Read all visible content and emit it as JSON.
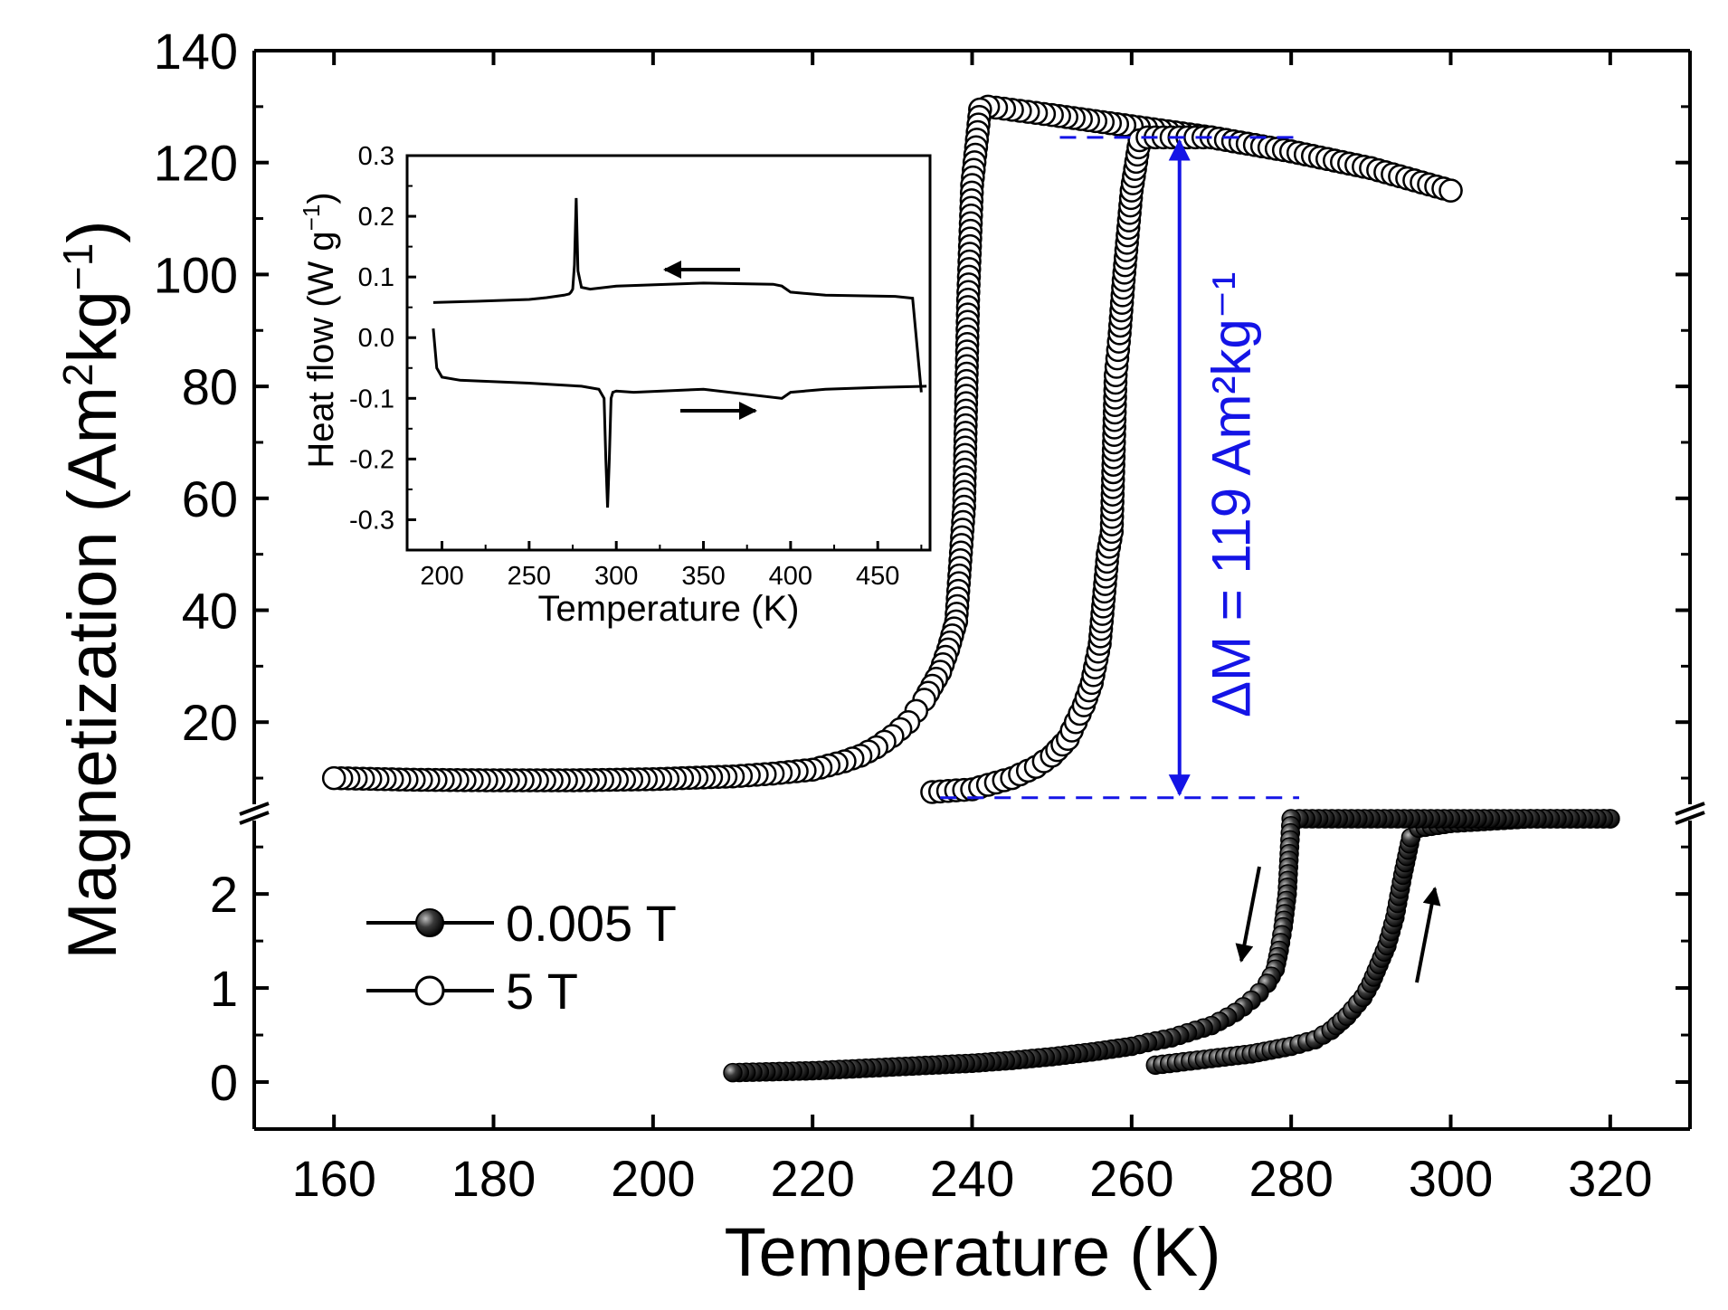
{
  "chart_data": [
    {
      "type": "scatter",
      "role": "main",
      "xlabel": "Temperature (K)",
      "ylabel": "Magnetization (Am²kg⁻¹)",
      "x_ticks": [
        "160",
        "180",
        "200",
        "220",
        "240",
        "260",
        "280",
        "300",
        "320"
      ],
      "xlim": [
        150,
        330
      ],
      "upper_panel": {
        "ylim": [
          5,
          140
        ],
        "y_ticks": [
          "20",
          "40",
          "60",
          "80",
          "100",
          "120",
          "140"
        ],
        "series": [
          {
            "name": "5 T",
            "marker": "open-circle",
            "cooling": {
              "x": [
                300,
                290,
                280,
                270,
                260,
                250,
                242,
                241,
                240,
                239.5,
                239,
                238,
                237,
                236,
                235,
                234,
                233,
                232,
                230,
                228,
                226,
                224,
                220,
                215,
                210,
                200,
                190,
                180,
                170,
                160
              ],
              "y": [
                115,
                119,
                122,
                124.5,
                126.5,
                128.5,
                130,
                129.5,
                116,
                95.5,
                58.5,
                38,
                33,
                29,
                26.5,
                24,
                22,
                20,
                17.5,
                15.5,
                14,
                13,
                11.5,
                10.8,
                10.3,
                9.8,
                9.6,
                9.6,
                9.7,
                10
              ]
            },
            "heating": {
              "x": [
                235,
                240,
                245,
                248,
                250,
                252,
                253,
                254,
                255,
                256,
                257,
                257.5,
                258,
                258.5,
                259,
                260,
                261,
                262,
                270,
                280,
                290,
                300
              ],
              "y": [
                7.5,
                8,
                10,
                12,
                14,
                17,
                20,
                23,
                27,
                34,
                50,
                54,
                82,
                89.5,
                99,
                115,
                124,
                124.5,
                124.5,
                122,
                119,
                115
              ]
            }
          }
        ],
        "annotation": {
          "text": "ΔM = 119 Am²kg⁻¹",
          "x": 266,
          "y_low": 6.5,
          "y_high": 124.5,
          "color": "#1414e6"
        }
      },
      "lower_panel": {
        "ylim": [
          -0.5,
          2.8
        ],
        "y_ticks": [
          "0",
          "1",
          "2"
        ],
        "series": [
          {
            "name": "0.005 T",
            "marker": "filled-circle",
            "cooling": {
              "x": [
                320,
                310,
                300,
                290,
                281,
                280,
                279.8,
                279.5,
                279,
                278.5,
                278,
                277,
                276,
                275,
                274,
                273,
                272,
                270,
                268,
                265,
                262,
                260,
                255,
                250,
                245,
                240,
                235,
                230,
                225,
                220,
                215,
                210
              ],
              "y": [
                2.8,
                2.8,
                2.8,
                2.8,
                2.8,
                2.8,
                2.5,
                2.0,
                1.65,
                1.4,
                1.2,
                1.05,
                0.95,
                0.87,
                0.8,
                0.74,
                0.69,
                0.6,
                0.55,
                0.47,
                0.42,
                0.38,
                0.32,
                0.27,
                0.23,
                0.2,
                0.18,
                0.16,
                0.14,
                0.12,
                0.11,
                0.1
              ]
            },
            "heating": {
              "x": [
                263,
                270,
                275,
                280,
                283,
                285,
                287,
                289,
                290,
                291,
                292,
                293,
                294,
                295,
                296,
                300,
                310,
                320
              ],
              "y": [
                0.18,
                0.25,
                0.3,
                0.38,
                0.45,
                0.55,
                0.7,
                0.9,
                1.05,
                1.25,
                1.45,
                1.75,
                2.2,
                2.6,
                2.7,
                2.75,
                2.8,
                2.8
              ]
            }
          }
        ]
      },
      "legend": {
        "position": "lower-left",
        "entries": [
          "0.005 T",
          "5 T"
        ]
      }
    },
    {
      "type": "line",
      "role": "inset",
      "xlabel": "Temperature (K)",
      "ylabel": "Heat flow (W g⁻¹)",
      "xlim": [
        180,
        480
      ],
      "ylim": [
        -0.35,
        0.3
      ],
      "x_ticks": [
        "200",
        "250",
        "300",
        "350",
        "400",
        "450"
      ],
      "y_ticks": [
        "0.3",
        "0.2",
        "0.1",
        "0.0",
        "-0.1",
        "-0.2",
        "-0.3"
      ],
      "series": [
        {
          "name": "cooling",
          "x": [
            475,
            470,
            460,
            420,
            400,
            395,
            390,
            350,
            300,
            285,
            280,
            278,
            277,
            276,
            275,
            274,
            273,
            270,
            260,
            250,
            220,
            195
          ],
          "y": [
            -0.09,
            0.065,
            0.068,
            0.07,
            0.075,
            0.085,
            0.088,
            0.09,
            0.085,
            0.08,
            0.083,
            0.11,
            0.23,
            0.12,
            0.08,
            0.075,
            0.072,
            0.07,
            0.066,
            0.063,
            0.06,
            0.058
          ]
        },
        {
          "name": "heating",
          "x": [
            195,
            197,
            200,
            210,
            250,
            280,
            290,
            293,
            294,
            295,
            296,
            297,
            298,
            300,
            310,
            350,
            395,
            400,
            420,
            450,
            478
          ],
          "y": [
            0.015,
            -0.05,
            -0.065,
            -0.07,
            -0.075,
            -0.08,
            -0.085,
            -0.1,
            -0.2,
            -0.28,
            -0.2,
            -0.1,
            -0.09,
            -0.088,
            -0.09,
            -0.085,
            -0.1,
            -0.09,
            -0.085,
            -0.082,
            -0.08
          ]
        }
      ],
      "arrows": [
        {
          "direction": "left",
          "label": "cooling"
        },
        {
          "direction": "right",
          "label": "heating"
        }
      ]
    }
  ]
}
